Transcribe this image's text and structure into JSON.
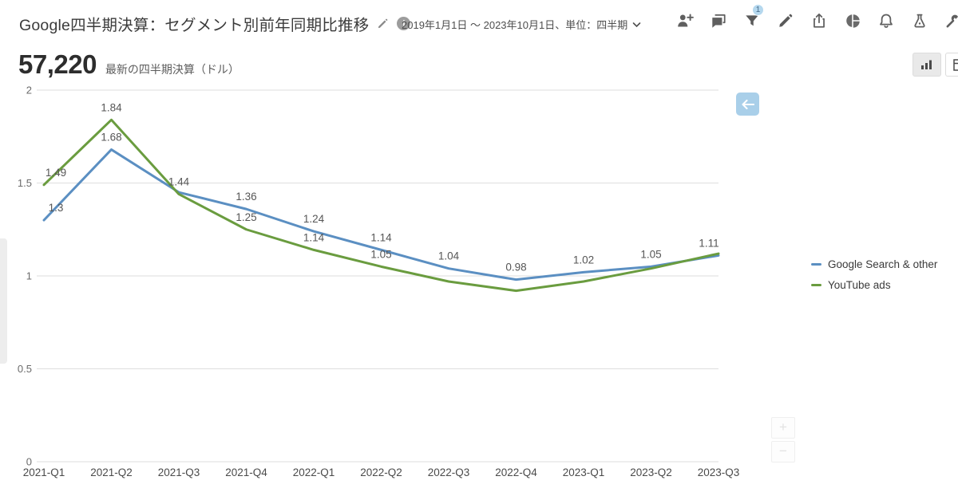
{
  "header": {
    "title": "Google四半期決算：セグメント別前年同期比推移",
    "date_range": "2019年1月1日 〜 2023年10月1日、単位：四半期",
    "info_glyph": "i",
    "filter_badge": "1",
    "toolbar_icons": [
      "add-user",
      "comments",
      "filter",
      "edit",
      "share",
      "pie-chart",
      "notifications",
      "lab",
      "tools"
    ]
  },
  "kpi": {
    "value": "57,220",
    "label": "最新の四半期決算（ドル）"
  },
  "view_switcher": {
    "options": [
      "chart",
      "table"
    ],
    "selected": "chart"
  },
  "chart_data": {
    "type": "line",
    "title": "Google四半期決算：セグメント別前年同期比推移",
    "categories": [
      "2021-Q1",
      "2021-Q2",
      "2021-Q3",
      "2021-Q4",
      "2022-Q1",
      "2022-Q2",
      "2022-Q3",
      "2022-Q4",
      "2023-Q1",
      "2023-Q2",
      "2023-Q3"
    ],
    "series": [
      {
        "name": "Google Search & other",
        "color": "#5b8fc2",
        "values": [
          1.3,
          1.68,
          1.45,
          1.36,
          1.24,
          1.14,
          1.04,
          0.98,
          1.02,
          1.05,
          1.11
        ],
        "point_labels": [
          "1.3",
          "1.68",
          null,
          "1.36",
          "1.24",
          "1.14",
          "1.04",
          "0.98",
          "1.02",
          "1.05",
          "1.11"
        ]
      },
      {
        "name": "YouTube ads",
        "color": "#6a9c3f",
        "values": [
          1.49,
          1.84,
          1.44,
          1.25,
          1.14,
          1.05,
          0.97,
          0.92,
          0.97,
          1.04,
          1.12
        ],
        "point_labels": [
          "1.49",
          "1.84",
          "1.44",
          "1.25",
          "1.14",
          "1.05",
          null,
          null,
          null,
          null,
          null
        ]
      }
    ],
    "xlabel": "",
    "ylabel": "",
    "ylim": [
      0,
      2
    ],
    "yticks": [
      "0",
      "0.5",
      "1",
      "1.5",
      "2"
    ],
    "grid": true,
    "legend_position": "right"
  },
  "controls": {
    "back_arrow": "←",
    "zoom_in": "+",
    "zoom_out": "−"
  }
}
